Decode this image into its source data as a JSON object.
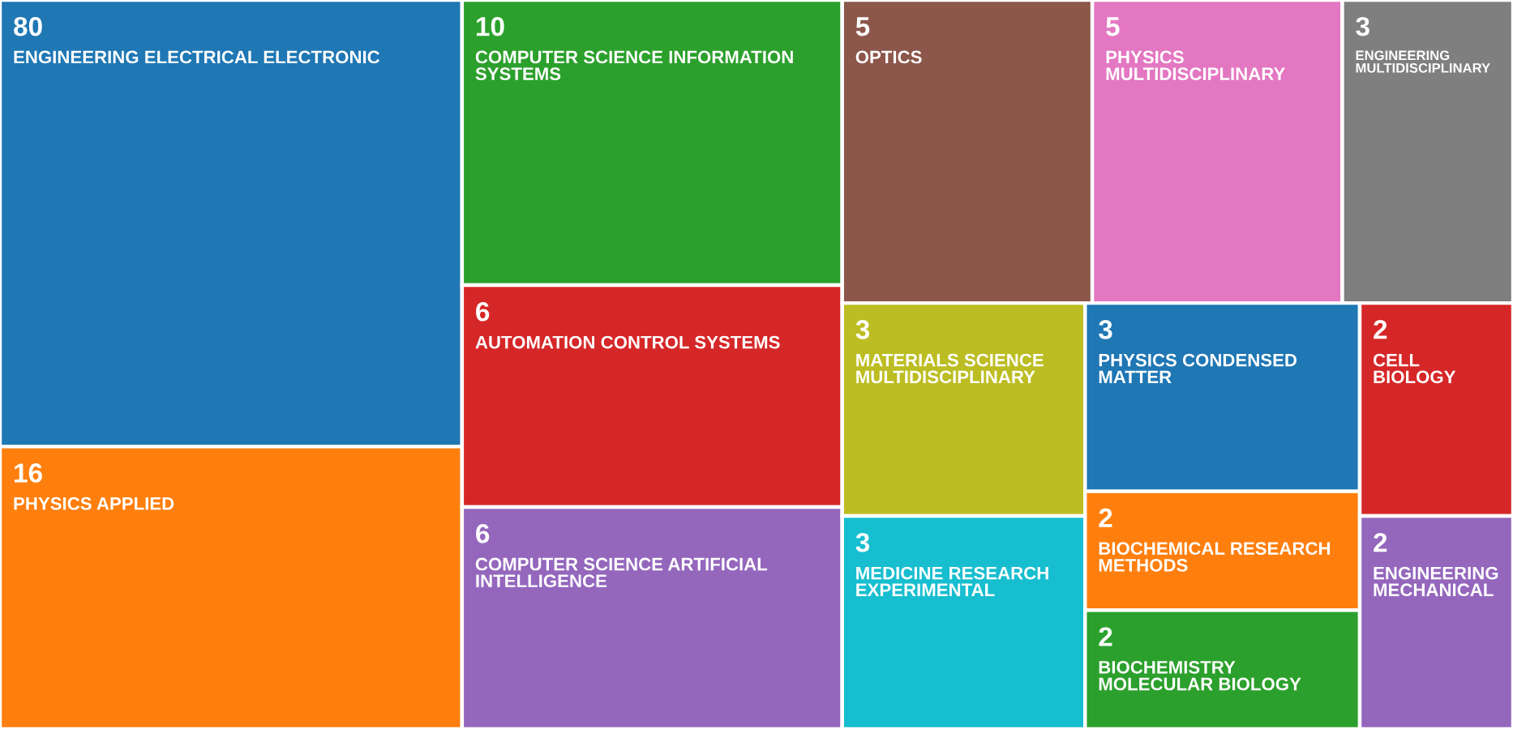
{
  "chart_data": {
    "type": "other",
    "data_labels": true,
    "categories": [
      "ENGINEERING ELECTRICAL ELECTRONIC",
      "PHYSICS APPLIED",
      "COMPUTER SCIENCE INFORMATION SYSTEMS",
      "AUTOMATION CONTROL SYSTEMS",
      "COMPUTER SCIENCE ARTIFICIAL INTELLIGENCE",
      "OPTICS",
      "PHYSICS MULTIDISCIPLINARY",
      "ENGINEERING MULTIDISCIPLINARY",
      "MATERIALS SCIENCE MULTIDISCIPLINARY",
      "MEDICINE RESEARCH EXPERIMENTAL",
      "PHYSICS CONDENSED MATTER",
      "BIOCHEMICAL RESEARCH METHODS",
      "BIOCHEMISTRY MOLECULAR BIOLOGY",
      "CELL BIOLOGY",
      "ENGINEERING MECHANICAL"
    ],
    "values": [
      80,
      16,
      10,
      6,
      6,
      5,
      5,
      3,
      3,
      3,
      3,
      2,
      2,
      2,
      2
    ],
    "colors": [
      "#1f77b4",
      "#ff7f0e",
      "#2ca02c",
      "#d62728",
      "#9467bd",
      "#8c564b",
      "#e377c2",
      "#7f7f7f",
      "#bcbd22",
      "#17becf",
      "#1f77b4",
      "#ff7f0e",
      "#2ca02c",
      "#d62728",
      "#9467bd"
    ]
  }
}
